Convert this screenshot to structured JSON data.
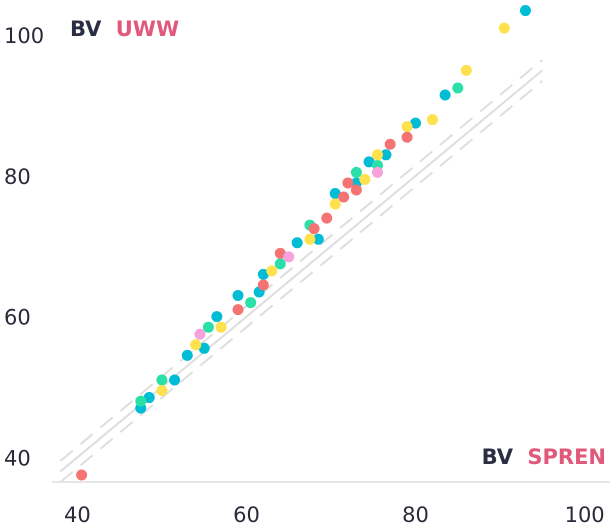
{
  "chart_data": {
    "type": "scatter",
    "title": "",
    "xlabel": "",
    "ylabel": "",
    "x_label_parts": [
      "BV",
      "SPREN"
    ],
    "y_label_parts": [
      "BV",
      "UWW"
    ],
    "label_colors": {
      "prefix": "#2b2d42",
      "accent": "#e0587a"
    },
    "xlim": [
      37,
      103
    ],
    "ylim": [
      36.5,
      105
    ],
    "x_ticks": [
      "40",
      "60",
      "80",
      "100"
    ],
    "y_ticks": [
      "40",
      "60",
      "80",
      "100"
    ],
    "grid": false,
    "reference_lines": [
      {
        "style": "solid",
        "offset": 0,
        "color": "#dedede"
      },
      {
        "style": "dashed",
        "offset": 1.5,
        "color": "#dedede"
      },
      {
        "style": "dashed",
        "offset": -1.5,
        "color": "#dedede"
      }
    ],
    "series": [
      {
        "color": "#00bcd4",
        "points": [
          [
            47.5,
            47
          ],
          [
            48.5,
            48.5
          ],
          [
            51.5,
            51
          ],
          [
            53,
            54.5
          ],
          [
            55,
            55.5
          ],
          [
            56.5,
            60
          ],
          [
            59,
            63
          ],
          [
            61.5,
            63.5
          ],
          [
            62,
            66
          ],
          [
            66,
            70.5
          ],
          [
            68.5,
            71
          ],
          [
            70.5,
            77.5
          ],
          [
            73,
            79
          ],
          [
            74.5,
            82
          ],
          [
            76.5,
            83
          ],
          [
            80,
            87.5
          ],
          [
            83.5,
            91.5
          ],
          [
            93,
            103.5
          ]
        ]
      },
      {
        "color": "#2be0a8",
        "points": [
          [
            47.5,
            48
          ],
          [
            50,
            51
          ],
          [
            55.5,
            58.5
          ],
          [
            60.5,
            62
          ],
          [
            64,
            67.5
          ],
          [
            67.5,
            73
          ],
          [
            73,
            80.5
          ],
          [
            75.5,
            81.5
          ],
          [
            85,
            92.5
          ]
        ]
      },
      {
        "color": "#ffe14d",
        "points": [
          [
            50,
            49.5
          ],
          [
            54,
            56
          ],
          [
            57,
            58.5
          ],
          [
            63,
            66.5
          ],
          [
            67.5,
            71
          ],
          [
            70.5,
            76
          ],
          [
            74,
            79.5
          ],
          [
            75.5,
            83
          ],
          [
            79,
            87
          ],
          [
            82,
            88
          ],
          [
            86,
            95
          ],
          [
            90.5,
            101
          ]
        ]
      },
      {
        "color": "#f47474",
        "points": [
          [
            40.5,
            37.5
          ],
          [
            59,
            61
          ],
          [
            62,
            64.5
          ],
          [
            64,
            69
          ],
          [
            68,
            72.5
          ],
          [
            69.5,
            74
          ],
          [
            71.5,
            77
          ],
          [
            72,
            79
          ],
          [
            73,
            78
          ],
          [
            77,
            84.5
          ],
          [
            79,
            85.5
          ]
        ]
      },
      {
        "color": "#f7a1dd",
        "points": [
          [
            54.5,
            57.5
          ],
          [
            65,
            68.5
          ],
          [
            75.5,
            80.5
          ]
        ]
      }
    ]
  }
}
